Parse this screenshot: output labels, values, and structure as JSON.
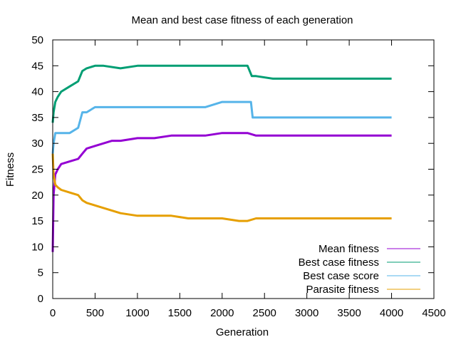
{
  "chart_data": {
    "type": "line",
    "title": "Mean and best case fitness of each generation",
    "xlabel": "Generation",
    "ylabel": "Fitness",
    "xlim": [
      0,
      4500
    ],
    "ylim": [
      0,
      50
    ],
    "x_ticks": [
      0,
      500,
      1000,
      1500,
      2000,
      2500,
      3000,
      3500,
      4000,
      4500
    ],
    "y_ticks": [
      0,
      5,
      10,
      15,
      20,
      25,
      30,
      35,
      40,
      45,
      50
    ],
    "grid": false,
    "legend_position": "bottom-right",
    "series": [
      {
        "name": "Mean fitness",
        "color": "#9400d3",
        "x": [
          0,
          10,
          30,
          60,
          100,
          200,
          300,
          350,
          400,
          500,
          600,
          700,
          800,
          1000,
          1200,
          1400,
          1600,
          1800,
          2000,
          2200,
          2300,
          2400,
          2600,
          2800,
          3000,
          3200,
          3400,
          3600,
          3800,
          4000
        ],
        "y": [
          9,
          20,
          24,
          25,
          26,
          26.5,
          27,
          28,
          29,
          29.5,
          30,
          30.5,
          30.5,
          31,
          31,
          31.5,
          31.5,
          31.5,
          32,
          32,
          32,
          31.5,
          31.5,
          31.5,
          31.5,
          31.5,
          31.5,
          31.5,
          31.5,
          31.5
        ]
      },
      {
        "name": "Best case fitness",
        "color": "#009e73",
        "x": [
          0,
          10,
          30,
          60,
          100,
          200,
          300,
          350,
          400,
          500,
          600,
          800,
          1000,
          1200,
          1400,
          1600,
          1800,
          2000,
          2200,
          2300,
          2350,
          2400,
          2600,
          2800,
          3000,
          3200,
          3400,
          3600,
          3800,
          4000
        ],
        "y": [
          34,
          36,
          38,
          39,
          40,
          41,
          42,
          44,
          44.5,
          45,
          45,
          44.5,
          45,
          45,
          45,
          45,
          45,
          45,
          45,
          45,
          43,
          43,
          42.5,
          42.5,
          42.5,
          42.5,
          42.5,
          42.5,
          42.5,
          42.5
        ]
      },
      {
        "name": "Best case score",
        "color": "#56b4e9",
        "x": [
          0,
          10,
          30,
          60,
          100,
          200,
          300,
          350,
          400,
          500,
          600,
          800,
          1000,
          1200,
          1400,
          1600,
          1800,
          2000,
          2200,
          2340,
          2360,
          2600,
          2800,
          3000,
          3200,
          3400,
          3600,
          3800,
          4000
        ],
        "y": [
          28,
          30,
          32,
          32,
          32,
          32,
          33,
          36,
          36,
          37,
          37,
          37,
          37,
          37,
          37,
          37,
          37,
          38,
          38,
          38,
          35,
          35,
          35,
          35,
          35,
          35,
          35,
          35,
          35
        ]
      },
      {
        "name": "Parasite fitness",
        "color": "#e69f00",
        "x": [
          0,
          10,
          30,
          60,
          100,
          200,
          300,
          350,
          400,
          500,
          600,
          700,
          800,
          1000,
          1200,
          1400,
          1600,
          1800,
          2000,
          2200,
          2300,
          2400,
          2600,
          2800,
          3000,
          3200,
          3400,
          3600,
          3800,
          4000
        ],
        "y": [
          28,
          24,
          22,
          21.5,
          21,
          20.5,
          20,
          19,
          18.5,
          18,
          17.5,
          17,
          16.5,
          16,
          16,
          16,
          15.5,
          15.5,
          15.5,
          15,
          15,
          15.5,
          15.5,
          15.5,
          15.5,
          15.5,
          15.5,
          15.5,
          15.5,
          15.5
        ]
      }
    ]
  }
}
